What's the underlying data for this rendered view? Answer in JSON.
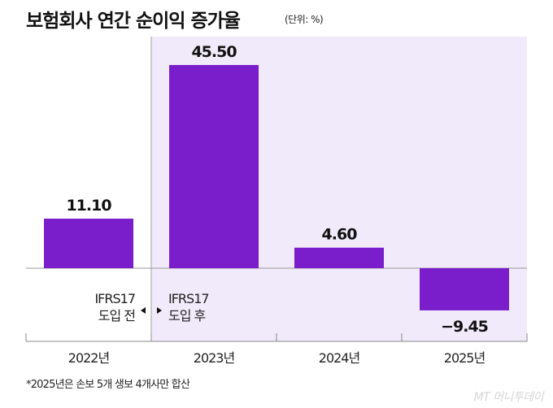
{
  "title": "보험회사 연간 순이익 증가율",
  "unit": "(단위: %)",
  "annotation_before": [
    "IFRS17",
    "도입 전"
  ],
  "annotation_after": [
    "IFRS17",
    "도입 후"
  ],
  "footnote": "*2025년은 손보 5개 생보 4개사만 합산",
  "watermark": "MT 머니투데이",
  "colors": {
    "bar": "#7a1ecb",
    "shade": "#f1eafa"
  },
  "chart_data": {
    "type": "bar",
    "categories": [
      "2022년",
      "2023년",
      "2024년",
      "2025년"
    ],
    "values": [
      11.1,
      45.5,
      4.6,
      -9.45
    ],
    "labels": [
      "11.10",
      "45.50",
      "4.60",
      "−9.45"
    ],
    "shaded_from_category": "2023년",
    "grid": false
  }
}
